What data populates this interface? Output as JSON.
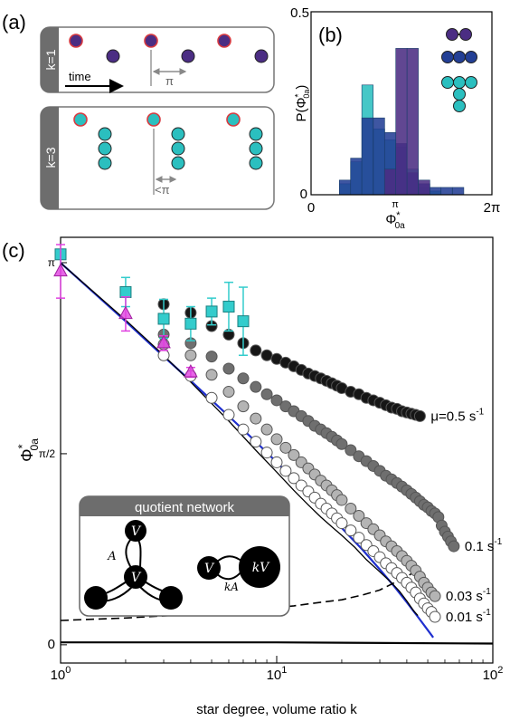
{
  "chart_data": [
    {
      "panel": "a",
      "type": "diagram",
      "panel_label": "(a)",
      "rows": [
        {
          "label": "k=1",
          "time_label": "time",
          "spacing_label": "π"
        },
        {
          "label": "k=3",
          "spacing_label": "<π"
        }
      ]
    },
    {
      "panel": "b",
      "type": "bar",
      "panel_label": "(b)",
      "xlabel": "Φ*0a",
      "ylabel": "P(Φ*0a)",
      "xlim": [
        0,
        6.2832
      ],
      "ylim": [
        0,
        0.5
      ],
      "x_ticks": [
        "0",
        "π",
        "2π"
      ],
      "y_ticks": [
        "0",
        "0.5"
      ],
      "bin_width": 0.393,
      "series": [
        {
          "name": "k=3",
          "color": "#2bbfbf",
          "bins": [
            {
              "x": 1.18,
              "y": 0.03
            },
            {
              "x": 1.57,
              "y": 0.09
            },
            {
              "x": 1.96,
              "y": 0.3
            },
            {
              "x": 2.36,
              "y": 0.18
            },
            {
              "x": 2.75,
              "y": 0.15
            },
            {
              "x": 3.14,
              "y": 0.13
            },
            {
              "x": 3.53,
              "y": 0.07
            },
            {
              "x": 3.93,
              "y": 0.02
            },
            {
              "x": 4.32,
              "y": 0.01
            }
          ]
        },
        {
          "name": "k=2",
          "color": "#233f95",
          "bins": [
            {
              "x": 1.18,
              "y": 0.04
            },
            {
              "x": 1.57,
              "y": 0.1
            },
            {
              "x": 1.96,
              "y": 0.21
            },
            {
              "x": 2.36,
              "y": 0.21
            },
            {
              "x": 2.75,
              "y": 0.17
            },
            {
              "x": 3.14,
              "y": 0.14
            },
            {
              "x": 3.53,
              "y": 0.06
            },
            {
              "x": 3.93,
              "y": 0.03
            },
            {
              "x": 4.32,
              "y": 0.02
            },
            {
              "x": 4.71,
              "y": 0.02
            },
            {
              "x": 5.11,
              "y": 0.02
            }
          ]
        },
        {
          "name": "k=1",
          "color": "#4b2d83",
          "bins": [
            {
              "x": 2.75,
              "y": 0.07
            },
            {
              "x": 3.14,
              "y": 0.4
            },
            {
              "x": 3.53,
              "y": 0.4
            },
            {
              "x": 3.93,
              "y": 0.04
            }
          ]
        }
      ]
    },
    {
      "panel": "c",
      "type": "scatter",
      "panel_label": "(c)",
      "xlabel": "star degree, volume ratio k",
      "ylabel": "Φ*0a",
      "xscale": "log",
      "xlim": [
        1,
        100
      ],
      "ylim": [
        -0.15,
        3.35
      ],
      "x_ticks": [
        {
          "v": 1,
          "label": "10^0"
        },
        {
          "v": 10,
          "label": "10^1"
        },
        {
          "v": 100,
          "label": "10^2"
        }
      ],
      "y_ticks": [
        {
          "v": 0,
          "label": "0"
        },
        {
          "v": 1.5708,
          "label": "π/2"
        },
        {
          "v": 3.1416,
          "label": "π"
        }
      ],
      "series": [
        {
          "name": "μ=0.5 s-1",
          "label": "μ=0.5 s",
          "label_sup": "-1",
          "fill": "#161616",
          "points": [
            [
              3,
              2.8
            ],
            [
              4,
              2.73
            ],
            [
              5,
              2.62
            ],
            [
              6,
              2.55
            ],
            [
              7,
              2.48
            ],
            [
              8,
              2.42
            ],
            [
              9,
              2.38
            ],
            [
              10,
              2.35
            ],
            [
              11,
              2.32
            ],
            [
              12,
              2.29
            ],
            [
              13,
              2.26
            ],
            [
              14,
              2.23
            ],
            [
              15,
              2.21
            ],
            [
              16,
              2.19
            ],
            [
              17,
              2.17
            ],
            [
              18,
              2.15
            ],
            [
              19,
              2.13
            ],
            [
              20,
              2.11
            ],
            [
              22,
              2.08
            ],
            [
              24,
              2.06
            ],
            [
              26,
              2.03
            ],
            [
              28,
              2.01
            ],
            [
              30,
              1.99
            ],
            [
              32,
              1.97
            ],
            [
              34,
              1.95
            ],
            [
              36,
              1.94
            ],
            [
              38,
              1.92
            ],
            [
              40,
              1.91
            ],
            [
              42,
              1.9
            ],
            [
              44,
              1.89
            ],
            [
              46,
              1.88
            ]
          ]
        },
        {
          "name": "0.1 s-1",
          "label": "0.1 s",
          "label_sup": "-1",
          "fill": "#6f6f6f",
          "points": [
            [
              3,
              2.55
            ],
            [
              4,
              2.48
            ],
            [
              5,
              2.37
            ],
            [
              6,
              2.27
            ],
            [
              7,
              2.19
            ],
            [
              8,
              2.12
            ],
            [
              9,
              2.06
            ],
            [
              10,
              2.01
            ],
            [
              11,
              1.96
            ],
            [
              12,
              1.92
            ],
            [
              13,
              1.88
            ],
            [
              14,
              1.84
            ],
            [
              15,
              1.8
            ],
            [
              16,
              1.77
            ],
            [
              17,
              1.74
            ],
            [
              18,
              1.71
            ],
            [
              19,
              1.68
            ],
            [
              20,
              1.65
            ],
            [
              22,
              1.6
            ],
            [
              24,
              1.55
            ],
            [
              26,
              1.51
            ],
            [
              28,
              1.47
            ],
            [
              30,
              1.43
            ],
            [
              32,
              1.39
            ],
            [
              34,
              1.36
            ],
            [
              36,
              1.33
            ],
            [
              38,
              1.3
            ],
            [
              40,
              1.27
            ],
            [
              42,
              1.24
            ],
            [
              44,
              1.21
            ],
            [
              46,
              1.18
            ],
            [
              48,
              1.15
            ],
            [
              50,
              1.13
            ],
            [
              52,
              1.1
            ],
            [
              54,
              1.08
            ],
            [
              56,
              1.05
            ],
            [
              58,
              0.98
            ],
            [
              60,
              0.93
            ],
            [
              62,
              0.89
            ],
            [
              64,
              0.85
            ],
            [
              66,
              0.81
            ]
          ]
        },
        {
          "name": "0.03 s-1",
          "label": "0.03 s",
          "label_sup": "-1",
          "fill": "#b4b4b4",
          "points": [
            [
              3,
              2.47
            ],
            [
              4,
              2.38
            ],
            [
              5,
              2.22
            ],
            [
              6,
              2.08
            ],
            [
              7,
              1.96
            ],
            [
              8,
              1.86
            ],
            [
              9,
              1.77
            ],
            [
              10,
              1.69
            ],
            [
              11,
              1.62
            ],
            [
              12,
              1.56
            ],
            [
              13,
              1.5
            ],
            [
              14,
              1.45
            ],
            [
              15,
              1.4
            ],
            [
              16,
              1.35
            ],
            [
              17,
              1.31
            ],
            [
              18,
              1.27
            ],
            [
              19,
              1.23
            ],
            [
              20,
              1.19
            ],
            [
              22,
              1.12
            ],
            [
              24,
              1.06
            ],
            [
              26,
              1.0
            ],
            [
              28,
              0.95
            ],
            [
              30,
              0.9
            ],
            [
              32,
              0.85
            ],
            [
              34,
              0.81
            ],
            [
              36,
              0.77
            ],
            [
              38,
              0.73
            ],
            [
              40,
              0.69
            ],
            [
              42,
              0.65
            ],
            [
              44,
              0.61
            ],
            [
              46,
              0.56
            ],
            [
              48,
              0.51
            ],
            [
              50,
              0.47
            ],
            [
              52,
              0.43
            ],
            [
              54,
              0.4
            ]
          ]
        },
        {
          "name": "0.01 s-1",
          "label": "0.01 s",
          "label_sup": "-1",
          "fill": "#ffffff",
          "points": [
            [
              3,
              2.38
            ],
            [
              4,
              2.21
            ],
            [
              5,
              2.03
            ],
            [
              6,
              1.89
            ],
            [
              7,
              1.77
            ],
            [
              8,
              1.67
            ],
            [
              9,
              1.58
            ],
            [
              10,
              1.5
            ],
            [
              11,
              1.43
            ],
            [
              12,
              1.37
            ],
            [
              13,
              1.31
            ],
            [
              14,
              1.26
            ],
            [
              15,
              1.21
            ],
            [
              16,
              1.16
            ],
            [
              17,
              1.12
            ],
            [
              18,
              1.08
            ],
            [
              19,
              1.04
            ],
            [
              20,
              1.0
            ],
            [
              22,
              0.94
            ],
            [
              24,
              0.88
            ],
            [
              26,
              0.82
            ],
            [
              28,
              0.77
            ],
            [
              30,
              0.72
            ],
            [
              32,
              0.67
            ],
            [
              34,
              0.63
            ],
            [
              36,
              0.59
            ],
            [
              38,
              0.55
            ],
            [
              40,
              0.51
            ],
            [
              42,
              0.47
            ],
            [
              44,
              0.43
            ],
            [
              46,
              0.38
            ],
            [
              48,
              0.34
            ],
            [
              50,
              0.3
            ],
            [
              52,
              0.27
            ],
            [
              54,
              0.23
            ]
          ]
        }
      ],
      "experiments": [
        {
          "color": "#33cccc",
          "marker": "square",
          "points": [
            {
              "x": 1,
              "y": 3.21,
              "err": 0.04
            },
            {
              "x": 2,
              "y": 2.9,
              "err": 0.12
            },
            {
              "x": 3,
              "y": 2.68,
              "err": 0.16
            },
            {
              "x": 4,
              "y": 2.64,
              "err": 0.14
            },
            {
              "x": 5,
              "y": 2.74,
              "err": 0.11
            },
            {
              "x": 6,
              "y": 2.78,
              "err": 0.2
            },
            {
              "x": 7,
              "y": 2.66,
              "err": 0.28
            }
          ]
        },
        {
          "color": "#e040e0",
          "marker": "triangle",
          "points": [
            {
              "x": 1,
              "y": 3.07,
              "err": 0.22
            },
            {
              "x": 2,
              "y": 2.72,
              "err": 0.14
            },
            {
              "x": 3,
              "y": 2.48,
              "err": 0.06
            },
            {
              "x": 4,
              "y": 2.24,
              "err": 0.04
            }
          ]
        }
      ],
      "curves": [
        {
          "name": "blue",
          "color": "#1f2fcf",
          "width": 2.2,
          "dash": "",
          "points": [
            [
              1,
              3.14
            ],
            [
              2,
              2.66
            ],
            [
              3,
              2.37
            ],
            [
              4,
              2.17
            ],
            [
              6,
              1.88
            ],
            [
              8,
              1.67
            ],
            [
              10,
              1.5
            ],
            [
              13,
              1.3
            ],
            [
              16,
              1.13
            ],
            [
              20,
              0.96
            ],
            [
              25,
              0.78
            ],
            [
              30,
              0.62
            ],
            [
              35,
              0.48
            ],
            [
              40,
              0.35
            ],
            [
              45,
              0.23
            ],
            [
              50,
              0.12
            ],
            [
              53,
              0.06
            ]
          ]
        },
        {
          "name": "thin",
          "color": "#000000",
          "width": 1.3,
          "dash": "",
          "points": [
            [
              1,
              3.14
            ],
            [
              2,
              2.67
            ],
            [
              3,
              2.38
            ],
            [
              4,
              2.16
            ],
            [
              6,
              1.84
            ],
            [
              8,
              1.6
            ],
            [
              10,
              1.42
            ],
            [
              12,
              1.27
            ],
            [
              14,
              1.15
            ],
            [
              16,
              1.05
            ],
            [
              18,
              0.97
            ],
            [
              20,
              0.9
            ],
            [
              23,
              0.8
            ],
            [
              26,
              0.7
            ],
            [
              30,
              0.6
            ],
            [
              34,
              0.51
            ],
            [
              37,
              0.44
            ],
            [
              40,
              0.36
            ],
            [
              43,
              0.28
            ],
            [
              45,
              0.24
            ]
          ]
        },
        {
          "name": "dashed",
          "color": "#000000",
          "width": 1.6,
          "dash": "9,5",
          "points": [
            [
              1,
              0.2
            ],
            [
              2,
              0.22
            ],
            [
              4,
              0.25
            ],
            [
              8,
              0.29
            ],
            [
              12,
              0.32
            ],
            [
              16,
              0.35
            ],
            [
              20,
              0.37
            ],
            [
              25,
              0.41
            ],
            [
              30,
              0.45
            ],
            [
              35,
              0.51
            ],
            [
              40,
              0.56
            ],
            [
              45,
              0.62
            ]
          ]
        },
        {
          "name": "zero",
          "color": "#000000",
          "width": 2.2,
          "dash": "",
          "points": [
            [
              1,
              0.02
            ],
            [
              10,
              0.02
            ],
            [
              100,
              0.01
            ]
          ]
        }
      ],
      "inset": {
        "title": "quotient network",
        "star_labels": [
          "V",
          "V",
          "A"
        ],
        "pair_labels": [
          "V",
          "kV",
          "kA"
        ]
      },
      "curve_end_labels": []
    }
  ]
}
